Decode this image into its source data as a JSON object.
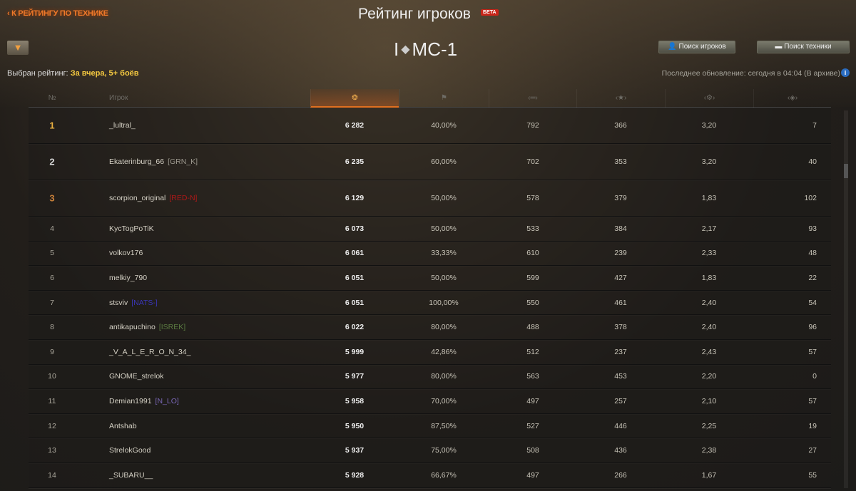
{
  "header": {
    "back_label": "К РЕЙТИНГУ ПО ТЕХНИКЕ",
    "title": "Рейтинг игроков",
    "beta": "БЕТА",
    "tier": "I",
    "tank": "МС-1"
  },
  "filter": {
    "label": "Выбран рейтинг:",
    "value": "За вчера, 5+ боёв"
  },
  "buttons": {
    "players": "Поиск игроков",
    "vehicles": "Поиск техники"
  },
  "update": "Последнее обновление: сегодня в 04:04 (В архиве)",
  "columns": {
    "num": "№",
    "player": "Игрок",
    "icons": [
      "rating-icon",
      "flag-icon",
      "damage-icon",
      "star-icon",
      "kills-icon",
      "spot-icon"
    ]
  },
  "colors": {
    "accent": "#f07a2a",
    "gold": "#e8b040",
    "silver": "#d8d8d8",
    "bronze": "#c9813a"
  },
  "rows": [
    {
      "rank": "1",
      "name": "_lultral_",
      "clan": "",
      "rating": "6 282",
      "win": "40,00%",
      "dmg": "792",
      "xp": "366",
      "kills": "3,20",
      "spot": "7"
    },
    {
      "rank": "2",
      "name": "Ekaterinburg_66",
      "clan": "[GRN_K]",
      "clan_color": "#9a968c",
      "rating": "6 235",
      "win": "60,00%",
      "dmg": "702",
      "xp": "353",
      "kills": "3,20",
      "spot": "40"
    },
    {
      "rank": "3",
      "name": "scorpion_original",
      "clan": "[RED-N]",
      "clan_color": "#b01818",
      "rating": "6 129",
      "win": "50,00%",
      "dmg": "578",
      "xp": "379",
      "kills": "1,83",
      "spot": "102"
    },
    {
      "rank": "4",
      "name": "KycTogPoTiK",
      "clan": "",
      "rating": "6 073",
      "win": "50,00%",
      "dmg": "533",
      "xp": "384",
      "kills": "2,17",
      "spot": "93"
    },
    {
      "rank": "5",
      "name": "volkov176",
      "clan": "",
      "rating": "6 061",
      "win": "33,33%",
      "dmg": "610",
      "xp": "239",
      "kills": "2,33",
      "spot": "48"
    },
    {
      "rank": "6",
      "name": "melkiy_790",
      "clan": "",
      "rating": "6 051",
      "win": "50,00%",
      "dmg": "599",
      "xp": "427",
      "kills": "1,83",
      "spot": "22"
    },
    {
      "rank": "7",
      "name": "stsviv",
      "clan": "[NATS-]",
      "clan_color": "#3a36b8",
      "rating": "6 051",
      "win": "100,00%",
      "dmg": "550",
      "xp": "461",
      "kills": "2,40",
      "spot": "54"
    },
    {
      "rank": "8",
      "name": "antikapuchino",
      "clan": "[ISREK]",
      "clan_color": "#5a7a40",
      "rating": "6 022",
      "win": "80,00%",
      "dmg": "488",
      "xp": "378",
      "kills": "2,40",
      "spot": "96"
    },
    {
      "rank": "9",
      "name": "_V_A_L_E_R_O_N_34_",
      "clan": "",
      "rating": "5 999",
      "win": "42,86%",
      "dmg": "512",
      "xp": "237",
      "kills": "2,43",
      "spot": "57"
    },
    {
      "rank": "10",
      "name": "GNOME_strelok",
      "clan": "",
      "rating": "5 977",
      "win": "80,00%",
      "dmg": "563",
      "xp": "453",
      "kills": "2,20",
      "spot": "0"
    },
    {
      "rank": "11",
      "name": "Demian1991",
      "clan": "[N_LO]",
      "clan_color": "#7a68b8",
      "rating": "5 958",
      "win": "70,00%",
      "dmg": "497",
      "xp": "257",
      "kills": "2,10",
      "spot": "57"
    },
    {
      "rank": "12",
      "name": "Antshab",
      "clan": "",
      "rating": "5 950",
      "win": "87,50%",
      "dmg": "527",
      "xp": "446",
      "kills": "2,25",
      "spot": "19"
    },
    {
      "rank": "13",
      "name": "StrelokGood",
      "clan": "",
      "rating": "5 937",
      "win": "75,00%",
      "dmg": "508",
      "xp": "436",
      "kills": "2,38",
      "spot": "27"
    },
    {
      "rank": "14",
      "name": "_SUBARU__",
      "clan": "",
      "rating": "5 928",
      "win": "66,67%",
      "dmg": "497",
      "xp": "266",
      "kills": "1,67",
      "spot": "55"
    }
  ]
}
